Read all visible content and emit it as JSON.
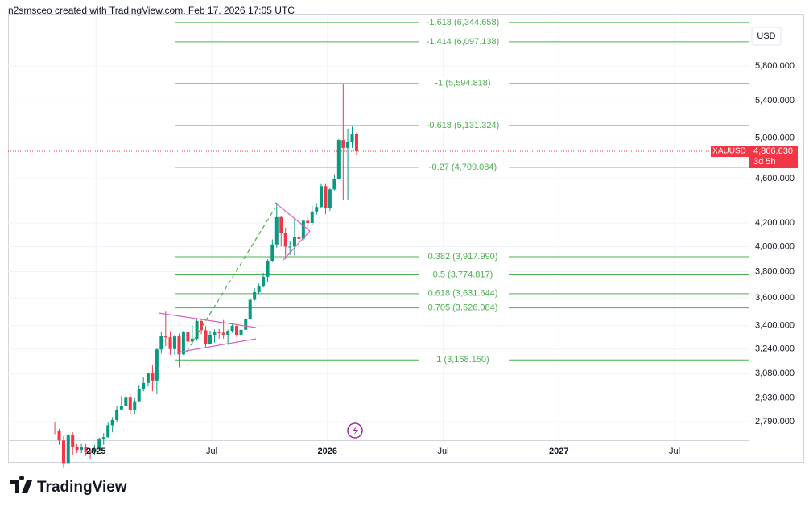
{
  "chart_data": {
    "type": "candlestick",
    "header": "n2smsceo created with TradingView.com, Feb 17, 2026 17:05 UTC",
    "symbol": "XAUUSD",
    "currency": "USD",
    "countdown": "3d 5h",
    "brand": "TradingView",
    "log_scale": true,
    "grid": true,
    "up_color": "#089981",
    "down_color": "#f23645",
    "fib_color": "#4caf50",
    "xlim": [
      2024.62,
      2027.82
    ],
    "ylim": [
      2686,
      6449
    ],
    "xticks": [
      2025,
      {
        "value": 2025.5,
        "label": "Jul"
      },
      2026,
      {
        "value": 2026.5,
        "label": "Jul"
      },
      2027,
      {
        "value": 2027.5,
        "label": "Jul"
      }
    ],
    "yticks": [
      {
        "value": 2790,
        "label": "2,790.000"
      },
      {
        "value": 2930,
        "label": "2,930.000"
      },
      {
        "value": 3080,
        "label": "3,080.000"
      },
      {
        "value": 3240,
        "label": "3,240.000"
      },
      {
        "value": 3400,
        "label": "3,400.000"
      },
      {
        "value": 3600,
        "label": "3,600.000"
      },
      {
        "value": 3800,
        "label": "3,800.000"
      },
      {
        "value": 4000,
        "label": "4,000.000"
      },
      {
        "value": 4200,
        "label": "4,200.000"
      },
      {
        "value": 4600,
        "label": "4,600.000"
      },
      {
        "value": 5000,
        "label": "5,000.000"
      },
      {
        "value": 5400,
        "label": "5,400.000"
      },
      {
        "value": 5800,
        "label": "5,800.000"
      }
    ],
    "last_price": {
      "value": 4866.63,
      "label": "4,866.630"
    },
    "fib_levels": [
      {
        "value": 6344.658,
        "label": "-1.618 (6,344.658)"
      },
      {
        "value": 6097.138,
        "label": "-1.414 (6,097.138)"
      },
      {
        "value": 5594.818,
        "label": "-1 (5,594.818)"
      },
      {
        "value": 5131.324,
        "label": "-0.618 (5,131.324)"
      },
      {
        "value": 4709.084,
        "label": "-0.27 (4,709.084)"
      },
      {
        "value": 3917.99,
        "label": "0.382 (3,917.990)"
      },
      {
        "value": 3774.817,
        "label": "0.5 (3,774.817)"
      },
      {
        "value": 3631.644,
        "label": "0.618 (3,631.644)"
      },
      {
        "value": 3526.084,
        "label": "0.705 (3,526.084)"
      },
      {
        "value": 3168.15,
        "label": "1 (3,168.150)"
      }
    ],
    "x": [
      2024.822,
      2024.841,
      2024.86,
      2024.88,
      2024.899,
      2024.918,
      2024.937,
      2024.956,
      2024.975,
      2024.994,
      2025.014,
      2025.033,
      2025.052,
      2025.071,
      2025.09,
      2025.11,
      2025.129,
      2025.148,
      2025.167,
      2025.186,
      2025.205,
      2025.225,
      2025.244,
      2025.263,
      2025.282,
      2025.301,
      2025.321,
      2025.34,
      2025.359,
      2025.378,
      2025.397,
      2025.416,
      2025.436,
      2025.455,
      2025.474,
      2025.493,
      2025.512,
      2025.532,
      2025.551,
      2025.57,
      2025.589,
      2025.608,
      2025.627,
      2025.647,
      2025.666,
      2025.685,
      2025.704,
      2025.723,
      2025.742,
      2025.762,
      2025.781,
      2025.8,
      2025.819,
      2025.838,
      2025.858,
      2025.877,
      2025.896,
      2025.915,
      2025.934,
      2025.953,
      2025.973,
      2025.992,
      2026.011,
      2026.03,
      2026.049,
      2026.068,
      2026.088,
      2026.107,
      2026.126
    ],
    "open": [
      2740,
      2736,
      2685,
      2563,
      2715,
      2650,
      2633,
      2648,
      2622,
      2621,
      2640,
      2690,
      2703,
      2770,
      2800,
      2861,
      2882,
      2936,
      2858,
      2910,
      2984,
      3022,
      3085,
      3037,
      3237,
      3327,
      3319,
      3240,
      3325,
      3205,
      3357,
      3290,
      3310,
      3432,
      3368,
      3274,
      3337,
      3355,
      3350,
      3337,
      3363,
      3398,
      3336,
      3371,
      3448,
      3586,
      3643,
      3685,
      3760,
      3886,
      4018,
      4250,
      4113,
      4000,
      4000,
      4080,
      4065,
      4218,
      4200,
      4300,
      4340,
      4530,
      4330,
      4500,
      4600,
      4980,
      4900,
      4960,
      5040
    ],
    "high": [
      2790,
      2750,
      2710,
      2721,
      2730,
      2665,
      2665,
      2665,
      2640,
      2660,
      2700,
      2725,
      2785,
      2817,
      2882,
      2942,
      2956,
      2954,
      2930,
      3005,
      3057,
      3086,
      3136,
      3245,
      3358,
      3500,
      3360,
      3339,
      3345,
      3365,
      3366,
      3403,
      3452,
      3451,
      3396,
      3365,
      3374,
      3377,
      3439,
      3372,
      3409,
      3404,
      3383,
      3453,
      3599,
      3674,
      3707,
      3790,
      3897,
      4060,
      4380,
      4260,
      4160,
      4050,
      4245,
      4150,
      4230,
      4264,
      4353,
      4375,
      4550,
      4550,
      4510,
      4642,
      4990,
      5595,
      5100,
      5120,
      5060
    ],
    "low": [
      2720,
      2660,
      2540,
      2560,
      2605,
      2615,
      2615,
      2600,
      2583,
      2605,
      2630,
      2660,
      2700,
      2730,
      2790,
      2856,
      2880,
      2832,
      2832,
      2905,
      2970,
      3000,
      2970,
      2957,
      3210,
      3260,
      3202,
      3200,
      3120,
      3200,
      3245,
      3270,
      3295,
      3340,
      3248,
      3270,
      3282,
      3310,
      3310,
      3268,
      3350,
      3320,
      3320,
      3370,
      3437,
      3579,
      3628,
      3677,
      3720,
      3880,
      3990,
      4000,
      3900,
      3930,
      3927,
      3997,
      4050,
      4150,
      4180,
      4270,
      4330,
      4275,
      4305,
      4490,
      4590,
      4400,
      4402,
      4900,
      4830
    ],
    "close": [
      2736,
      2685,
      2563,
      2715,
      2650,
      2633,
      2648,
      2622,
      2621,
      2640,
      2690,
      2703,
      2770,
      2800,
      2861,
      2882,
      2936,
      2858,
      2910,
      2984,
      3022,
      3085,
      3037,
      3237,
      3327,
      3319,
      3240,
      3325,
      3205,
      3357,
      3290,
      3310,
      3432,
      3368,
      3274,
      3337,
      3355,
      3350,
      3337,
      3363,
      3398,
      3336,
      3371,
      3448,
      3586,
      3643,
      3685,
      3760,
      3886,
      4018,
      4250,
      4113,
      4000,
      4000,
      4080,
      4065,
      4218,
      4200,
      4300,
      4340,
      4530,
      4330,
      4500,
      4600,
      4980,
      4900,
      4960,
      5040,
      4866.63
    ]
  }
}
